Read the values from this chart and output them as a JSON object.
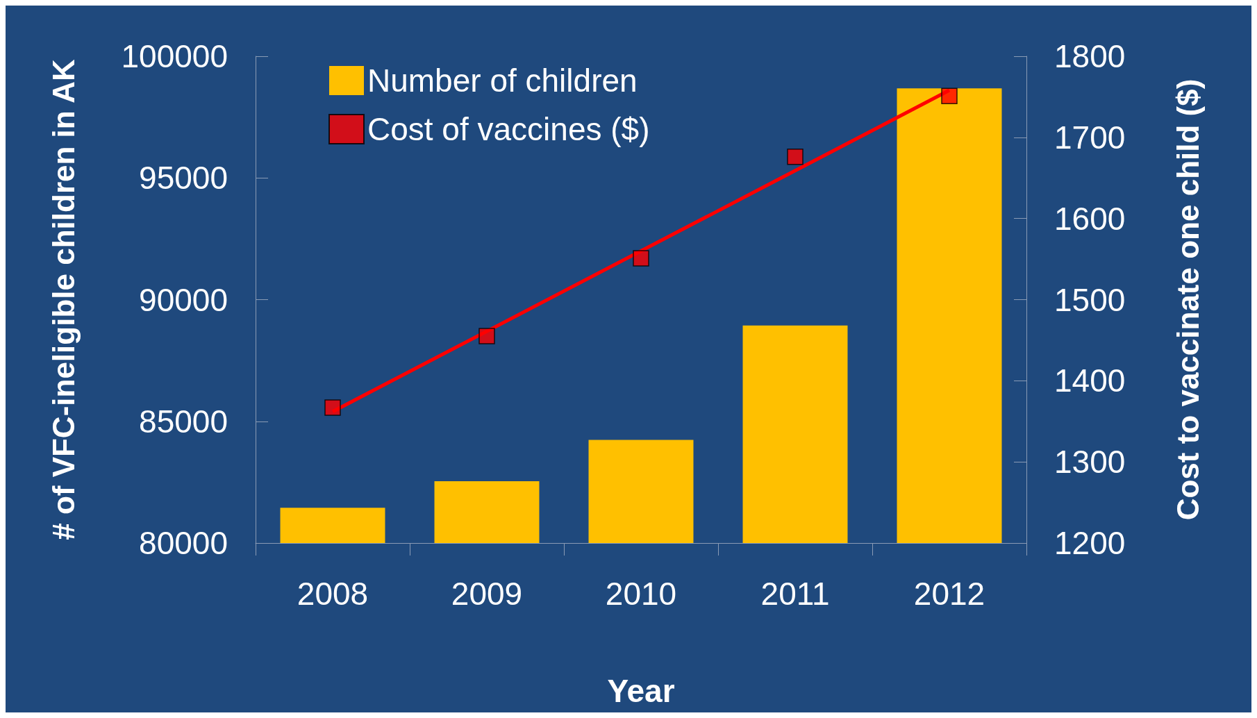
{
  "chart_data": {
    "type": "bar",
    "xlabel": "Year",
    "ylabel": "# of VFC-ineligible children in AK",
    "y2label": "Cost to vaccinate one child ($)",
    "categories": [
      "2008",
      "2009",
      "2010",
      "2011",
      "2012"
    ],
    "series": [
      {
        "name": "Number of children",
        "color": "#ffc000",
        "values": [
          81450,
          82540,
          84240,
          88940,
          98680
        ]
      },
      {
        "name": "Cost of vaccines ($)",
        "type": "scatter",
        "axis": "y2",
        "color": "#ff0000",
        "marker": "square",
        "values": [
          1367,
          1455,
          1551,
          1676,
          1751
        ]
      },
      {
        "type": "line",
        "axis": "y2",
        "color": "#ff0000",
        "marker": "none",
        "values": [
          1362,
          null,
          null,
          null,
          1758
        ]
      }
    ],
    "ylim": [
      80000,
      100000
    ],
    "yticks": [
      80000,
      85000,
      90000,
      95000,
      100000
    ],
    "y2lim": [
      1200,
      1800
    ],
    "y2ticks": [
      1200,
      1300,
      1400,
      1500,
      1600,
      1700,
      1800
    ],
    "grid": false,
    "legend": "top left"
  }
}
